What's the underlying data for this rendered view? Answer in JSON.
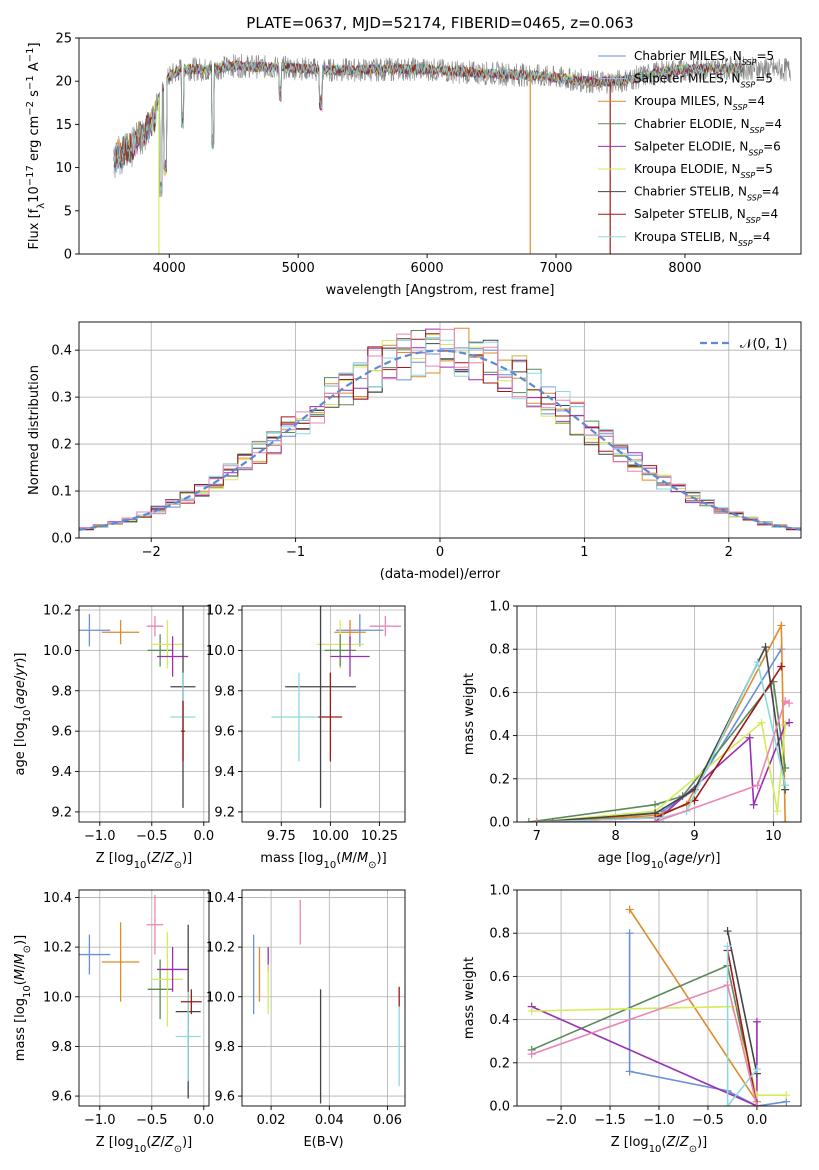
{
  "figure": {
    "title": "PLATE=0637, MJD=52174, FIBERID=0465, z=0.063"
  },
  "palette": [
    "#6a8fdc",
    "#e08a2a",
    "#9a9a9a",
    "#5a8a5a",
    "#9a2fb4",
    "#d4ec5a",
    "#444444",
    "#a01818",
    "#8fd8e0",
    "#ea85b4"
  ],
  "chart_data": [
    {
      "type": "line",
      "name": "spectrum",
      "title": "PLATE=0637, MJD=52174, FIBERID=0465, z=0.063",
      "xlabel": "wavelength [Angstrom, rest frame]",
      "ylabel": "Flux [f_λ 10^-17 erg cm^-2 s^-1 A^-1]",
      "xlim": [
        3300,
        8900
      ],
      "ylim": [
        0,
        25
      ],
      "xticks": [
        4000,
        5000,
        6000,
        7000,
        8000
      ],
      "yticks": [
        0,
        5,
        10,
        15,
        20,
        25
      ],
      "legend_position": "top-right",
      "continuum": {
        "x": [
          3570,
          3700,
          3800,
          3900,
          3950,
          4000,
          4100,
          4300,
          4500,
          4800,
          5000,
          5200,
          5500,
          5800,
          6000,
          6200,
          6500,
          6800,
          7000,
          7300,
          7500,
          7800,
          8000,
          8200,
          8500,
          8800
        ],
        "y": [
          12.5,
          14.0,
          15.5,
          17.5,
          19.0,
          20.5,
          21.5,
          21.3,
          21.8,
          21.6,
          21.5,
          21.3,
          21.3,
          21.4,
          21.4,
          21.1,
          20.9,
          20.7,
          20.4,
          19.9,
          20.0,
          21.0,
          21.4,
          21.5,
          21.5,
          21.3
        ]
      },
      "absorption_lines": [
        {
          "x": 3934,
          "y": 6.5
        },
        {
          "x": 3969,
          "y": 9.0
        },
        {
          "x": 4102,
          "y": 14.5
        },
        {
          "x": 4340,
          "y": 12.0
        },
        {
          "x": 4861,
          "y": 17.5
        },
        {
          "x": 5175,
          "y": 16.5
        }
      ],
      "series": [
        {
          "name": "Chabrier MILES",
          "nssp": 5,
          "color": "#6a8fdc"
        },
        {
          "name": "Salpeter MILES",
          "nssp": 5,
          "color": "#aab8ee"
        },
        {
          "name": "Kroupa MILES",
          "nssp": 4,
          "color": "#e08a2a"
        },
        {
          "name": "Chabrier ELODIE",
          "nssp": 4,
          "color": "#5a8a5a"
        },
        {
          "name": "Salpeter ELODIE",
          "nssp": 6,
          "color": "#9a2fb4"
        },
        {
          "name": "Kroupa ELODIE",
          "nssp": 5,
          "color": "#d4ec5a"
        },
        {
          "name": "Chabrier STELIB",
          "nssp": 4,
          "color": "#444444"
        },
        {
          "name": "Salpeter STELIB",
          "nssp": 4,
          "color": "#a01818"
        },
        {
          "name": "Kroupa STELIB",
          "nssp": 4,
          "color": "#8fd8e0"
        }
      ]
    },
    {
      "type": "histogram",
      "name": "residuals",
      "xlabel": "(data-model)/error",
      "ylabel": "Normed distribution",
      "xlim": [
        -2.5,
        2.5
      ],
      "ylim": [
        0,
        0.46
      ],
      "xticks": [
        -2,
        -1,
        0,
        1,
        2
      ],
      "yticks": [
        0.0,
        0.1,
        0.2,
        0.3,
        0.4
      ],
      "grid": true,
      "legend_position": "top-right",
      "reference_curve": {
        "label": "𝒩(0, 1)",
        "mean": 0,
        "sd": 1,
        "color": "#5a8ad8"
      },
      "bin_width": 0.1,
      "series_colors": [
        "#6a8fdc",
        "#e08a2a",
        "#5a8a5a",
        "#9a2fb4",
        "#d4ec5a",
        "#444444",
        "#a01818",
        "#8fd8e0",
        "#ea85b4"
      ]
    },
    {
      "type": "scatter",
      "name": "age-vs-metallicity",
      "xlabel": "Z [log10(Z/Z⊙)]",
      "ylabel": "age [log10(age/yr)]",
      "xlim": [
        -1.2,
        0.05
      ],
      "ylim": [
        9.15,
        10.22
      ],
      "xticks": [
        -1.0,
        -0.5,
        0.0
      ],
      "yticks": [
        9.2,
        9.4,
        9.6,
        9.8,
        10.0,
        10.2
      ],
      "grid": true,
      "points": [
        {
          "x": -1.1,
          "y": 10.1,
          "xerr": 0.2,
          "yerr": 0.08,
          "color": "#6a8fdc"
        },
        {
          "x": -0.8,
          "y": 10.09,
          "xerr": 0.18,
          "yerr": 0.06,
          "color": "#e08a2a"
        },
        {
          "x": -0.47,
          "y": 10.12,
          "xerr": 0.08,
          "yerr": 0.05,
          "color": "#ea85b4"
        },
        {
          "x": -0.42,
          "y": 10.0,
          "xerr": 0.12,
          "yerr": 0.08,
          "color": "#5a8a5a"
        },
        {
          "x": -0.35,
          "y": 10.03,
          "xerr": 0.15,
          "yerr": 0.12,
          "color": "#d4ec5a"
        },
        {
          "x": -0.3,
          "y": 9.97,
          "xerr": 0.15,
          "yerr": 0.1,
          "color": "#9a2fb4"
        },
        {
          "x": -0.2,
          "y": 9.82,
          "xerr": 0.12,
          "yerr": 0.6,
          "color": "#444444"
        },
        {
          "x": -0.2,
          "y": 9.67,
          "xerr": 0.12,
          "yerr": 0.22,
          "color": "#8fd8e0"
        },
        {
          "x": -0.2,
          "y": 9.6,
          "xerr": 0.02,
          "yerr": 0.15,
          "color": "#a01818"
        }
      ]
    },
    {
      "type": "scatter",
      "name": "age-vs-mass",
      "xlabel": "mass [log10(M/M⊙)]",
      "ylabel": "",
      "xlim": [
        9.55,
        10.38
      ],
      "ylim": [
        9.15,
        10.22
      ],
      "xticks": [
        9.75,
        10.0,
        10.25
      ],
      "xticklabels": [
        "9.75",
        "10.00",
        "10.25"
      ],
      "yticks": [
        9.2,
        9.4,
        9.6,
        9.8,
        10.0,
        10.2
      ],
      "grid": true,
      "points": [
        {
          "x": 10.28,
          "y": 10.12,
          "xerr": 0.08,
          "yerr": 0.05,
          "color": "#ea85b4"
        },
        {
          "x": 10.15,
          "y": 10.1,
          "xerr": 0.12,
          "yerr": 0.08,
          "color": "#6a8fdc"
        },
        {
          "x": 10.1,
          "y": 10.09,
          "xerr": 0.08,
          "yerr": 0.06,
          "color": "#e08a2a"
        },
        {
          "x": 10.05,
          "y": 10.03,
          "xerr": 0.12,
          "yerr": 0.12,
          "color": "#d4ec5a"
        },
        {
          "x": 10.05,
          "y": 10.0,
          "xerr": 0.08,
          "yerr": 0.08,
          "color": "#5a8a5a"
        },
        {
          "x": 10.1,
          "y": 9.97,
          "xerr": 0.1,
          "yerr": 0.1,
          "color": "#9a2fb4"
        },
        {
          "x": 9.95,
          "y": 9.82,
          "xerr": 0.18,
          "yerr": 0.6,
          "color": "#444444"
        },
        {
          "x": 9.84,
          "y": 9.67,
          "xerr": 0.14,
          "yerr": 0.22,
          "color": "#8fd8e0"
        },
        {
          "x": 10.0,
          "y": 9.67,
          "xerr": 0.06,
          "yerr": 0.22,
          "color": "#a01818"
        }
      ]
    },
    {
      "type": "line",
      "name": "mass-weight-vs-age",
      "xlabel": "age [log10(age/yr)]",
      "ylabel": "mass weight",
      "xlim": [
        6.75,
        10.35
      ],
      "ylim": [
        0,
        1.0
      ],
      "xticks": [
        7,
        8,
        9,
        10
      ],
      "yticks": [
        0.0,
        0.2,
        0.4,
        0.6,
        0.8,
        1.0
      ],
      "grid": true,
      "series": [
        {
          "color": "#6a8fdc",
          "x": [
            7.0,
            8.6,
            9.0,
            10.1
          ],
          "y": [
            0.0,
            0.05,
            0.15,
            0.8
          ]
        },
        {
          "color": "#e08a2a",
          "x": [
            7.0,
            8.5,
            8.9,
            10.1,
            10.15
          ],
          "y": [
            0.0,
            0.03,
            0.08,
            0.91,
            0.0
          ]
        },
        {
          "color": "#5a8a5a",
          "x": [
            6.9,
            8.5,
            8.85,
            10.0,
            10.15
          ],
          "y": [
            0.0,
            0.08,
            0.12,
            0.65,
            0.25
          ]
        },
        {
          "color": "#9a2fb4",
          "x": [
            7.2,
            8.5,
            9.7,
            9.75,
            10.15,
            10.2
          ],
          "y": [
            0.0,
            0.0,
            0.39,
            0.08,
            0.45,
            0.46
          ]
        },
        {
          "color": "#d4ec5a",
          "x": [
            7.0,
            8.5,
            9.85,
            10.05,
            10.15
          ],
          "y": [
            0.0,
            0.05,
            0.46,
            0.05,
            0.45
          ]
        },
        {
          "color": "#444444",
          "x": [
            7.0,
            8.5,
            9.0,
            9.9,
            10.15
          ],
          "y": [
            0.0,
            0.04,
            0.15,
            0.81,
            0.15
          ]
        },
        {
          "color": "#a01818",
          "x": [
            7.0,
            8.5,
            9.0,
            10.1
          ],
          "y": [
            0.0,
            0.02,
            0.1,
            0.72
          ]
        },
        {
          "color": "#8fd8e0",
          "x": [
            7.0,
            8.6,
            8.9,
            9.8,
            10.15
          ],
          "y": [
            0.0,
            0.02,
            0.05,
            0.74,
            0.17
          ]
        },
        {
          "color": "#ea85b4",
          "x": [
            7.0,
            8.5,
            9.8,
            10.15,
            10.2
          ],
          "y": [
            0.0,
            0.0,
            0.17,
            0.56,
            0.55
          ]
        }
      ]
    },
    {
      "type": "scatter",
      "name": "mass-vs-metallicity",
      "xlabel": "Z [log10(Z/Z⊙)]",
      "ylabel": "mass [log10(M/M⊙)]",
      "xlim": [
        -1.2,
        0.05
      ],
      "ylim": [
        9.56,
        10.43
      ],
      "xticks": [
        -1.0,
        -0.5,
        0.0
      ],
      "yticks": [
        9.6,
        9.8,
        10.0,
        10.2,
        10.4
      ],
      "grid": true,
      "points": [
        {
          "x": -1.1,
          "y": 10.17,
          "xerr": 0.2,
          "yerr": 0.08,
          "color": "#6a8fdc"
        },
        {
          "x": -0.8,
          "y": 10.14,
          "xerr": 0.18,
          "yerr": 0.16,
          "color": "#e08a2a"
        },
        {
          "x": -0.47,
          "y": 10.29,
          "xerr": 0.08,
          "yerr": 0.12,
          "color": "#ea85b4"
        },
        {
          "x": -0.42,
          "y": 10.03,
          "xerr": 0.12,
          "yerr": 0.12,
          "color": "#5a8a5a"
        },
        {
          "x": -0.35,
          "y": 10.07,
          "xerr": 0.15,
          "yerr": 0.19,
          "color": "#d4ec5a"
        },
        {
          "x": -0.3,
          "y": 10.11,
          "xerr": 0.15,
          "yerr": 0.09,
          "color": "#9a2fb4"
        },
        {
          "x": -0.15,
          "y": 9.94,
          "xerr": 0.12,
          "yerr": 0.35,
          "color": "#444444"
        },
        {
          "x": -0.15,
          "y": 9.84,
          "xerr": 0.12,
          "yerr": 0.18,
          "color": "#8fd8e0"
        },
        {
          "x": -0.12,
          "y": 9.98,
          "xerr": 0.1,
          "yerr": 0.05,
          "color": "#a01818"
        }
      ]
    },
    {
      "type": "scatter",
      "name": "mass-vs-ebv",
      "xlabel": "E(B-V)",
      "ylabel": "",
      "xlim": [
        0.01,
        0.066
      ],
      "ylim": [
        9.56,
        10.43
      ],
      "xticks": [
        0.02,
        0.04,
        0.06
      ],
      "yticks": [
        9.6,
        9.8,
        10.0,
        10.2,
        10.4
      ],
      "grid": true,
      "points": [
        {
          "x": 0.014,
          "y": 10.09,
          "yerr": 0.16,
          "color": "#6a8fdc"
        },
        {
          "x": 0.016,
          "y": 10.09,
          "yerr": 0.11,
          "color": "#e08a2a"
        },
        {
          "x": 0.019,
          "y": 10.15,
          "yerr": 0.05,
          "color": "#9a2fb4"
        },
        {
          "x": 0.019,
          "y": 10.03,
          "yerr": 0.1,
          "color": "#d4ec5a"
        },
        {
          "x": 0.03,
          "y": 10.3,
          "yerr": 0.09,
          "color": "#ea85b4"
        },
        {
          "x": 0.037,
          "y": 9.8,
          "yerr": 0.23,
          "color": "#444444"
        },
        {
          "x": 0.064,
          "y": 10.0,
          "yerr": 0.04,
          "color": "#a01818"
        },
        {
          "x": 0.064,
          "y": 9.8,
          "yerr": 0.16,
          "color": "#8fd8e0"
        }
      ]
    },
    {
      "type": "line",
      "name": "mass-weight-vs-metallicity",
      "xlabel": "Z [log10(Z/Z⊙)]",
      "ylabel": "mass weight",
      "xlim": [
        -2.45,
        0.45
      ],
      "ylim": [
        0,
        1.0
      ],
      "xticks": [
        -2.0,
        -1.5,
        -1.0,
        -0.5,
        0.0
      ],
      "yticks": [
        0.0,
        0.2,
        0.4,
        0.6,
        0.8,
        1.0
      ],
      "grid": true,
      "series": [
        {
          "color": "#6a8fdc",
          "x": [
            -1.3,
            -1.3,
            -0.3,
            0.0,
            0.3
          ],
          "y": [
            0.8,
            0.16,
            0.07,
            0.0,
            0.02
          ]
        },
        {
          "color": "#e08a2a",
          "x": [
            -1.3,
            0.0,
            0.0
          ],
          "y": [
            0.91,
            0.02,
            0.0
          ]
        },
        {
          "color": "#5a8a5a",
          "x": [
            -2.3,
            -0.3,
            0.0
          ],
          "y": [
            0.26,
            0.65,
            0.0
          ]
        },
        {
          "color": "#9a2fb4",
          "x": [
            -2.3,
            0.0,
            0.0
          ],
          "y": [
            0.46,
            0.0,
            0.39
          ]
        },
        {
          "color": "#d4ec5a",
          "x": [
            -2.3,
            -0.25,
            0.0,
            0.3
          ],
          "y": [
            0.44,
            0.46,
            0.05,
            0.05
          ]
        },
        {
          "color": "#444444",
          "x": [
            -0.3,
            0.0
          ],
          "y": [
            0.81,
            0.15
          ]
        },
        {
          "color": "#a01818",
          "x": [
            -0.3,
            0.0
          ],
          "y": [
            0.72,
            0.0
          ]
        },
        {
          "color": "#8fd8e0",
          "x": [
            -0.3,
            -0.3,
            0.0
          ],
          "y": [
            0.74,
            0.0,
            0.17
          ]
        },
        {
          "color": "#ea85b4",
          "x": [
            -2.3,
            -0.3,
            0.0
          ],
          "y": [
            0.24,
            0.56,
            0.0
          ]
        }
      ]
    }
  ]
}
